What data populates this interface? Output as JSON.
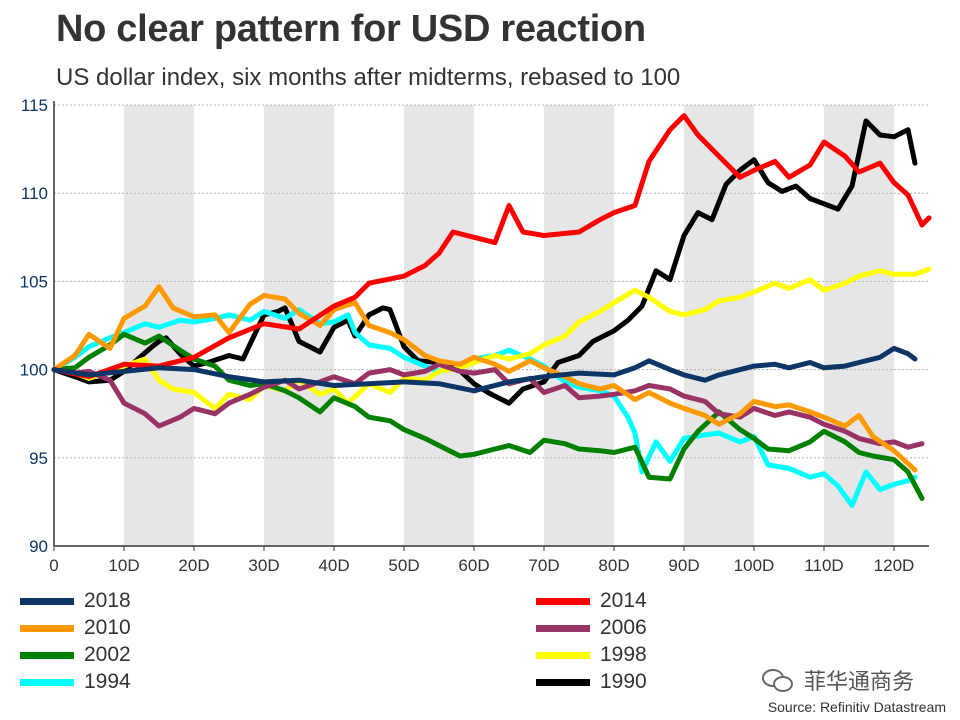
{
  "title": "No clear pattern for USD reaction",
  "subtitle": "US dollar index, six months after midterms, rebased to 100",
  "source": "Source: Refinitiv Datastream",
  "watermark": "菲华通商务",
  "watermark_icon": "wechat-icon",
  "chart_data": {
    "type": "line",
    "title": "No clear pattern for USD reaction",
    "subtitle": "US dollar index, six months after midterms, rebased to 100",
    "xlabel": "",
    "ylabel": "",
    "xlim": [
      0,
      125
    ],
    "ylim": [
      90,
      115
    ],
    "x_ticks": [
      0,
      10,
      20,
      30,
      40,
      50,
      60,
      70,
      80,
      90,
      100,
      110,
      120
    ],
    "x_tick_labels": [
      "0",
      "10D",
      "20D",
      "30D",
      "40D",
      "50D",
      "60D",
      "70D",
      "80D",
      "90D",
      "100D",
      "110D",
      "120D"
    ],
    "y_ticks": [
      90,
      95,
      100,
      105,
      110,
      115
    ],
    "y_tick_labels": [
      "90",
      "95",
      "100",
      "105",
      "110",
      "115"
    ],
    "grid": "horizontal dotted",
    "shaded_bands": [
      [
        10,
        20
      ],
      [
        30,
        40
      ],
      [
        50,
        60
      ],
      [
        70,
        80
      ],
      [
        90,
        100
      ],
      [
        110,
        120
      ]
    ],
    "legend_position": "bottom",
    "series": [
      {
        "name": "2018",
        "color": "#0d3566",
        "x": [
          0,
          5,
          10,
          15,
          20,
          25,
          30,
          35,
          40,
          45,
          50,
          55,
          60,
          65,
          70,
          75,
          80,
          83,
          85,
          88,
          90,
          93,
          95,
          100,
          103,
          105,
          108,
          110,
          113,
          115,
          118,
          120,
          122,
          123
        ],
        "y": [
          100,
          99.7,
          99.9,
          100.1,
          100,
          99.6,
          99.3,
          99.4,
          99.1,
          99.2,
          99.3,
          99.2,
          98.8,
          99.3,
          99.6,
          99.8,
          99.7,
          100.1,
          100.5,
          100,
          99.7,
          99.4,
          99.7,
          100.2,
          100.3,
          100.1,
          100.4,
          100.1,
          100.2,
          100.4,
          100.7,
          101.2,
          100.9,
          100.6
        ]
      },
      {
        "name": "2014",
        "color": "#ff0000",
        "x": [
          0,
          5,
          10,
          15,
          20,
          25,
          30,
          35,
          40,
          43,
          45,
          50,
          53,
          55,
          57,
          60,
          63,
          65,
          67,
          70,
          75,
          78,
          80,
          83,
          85,
          88,
          90,
          92,
          95,
          98,
          100,
          103,
          105,
          108,
          110,
          113,
          115,
          118,
          120,
          122,
          124,
          125
        ],
        "y": [
          100,
          99.6,
          100.3,
          100.2,
          100.7,
          101.8,
          102.6,
          102.3,
          103.6,
          104.1,
          104.9,
          105.3,
          105.9,
          106.6,
          107.8,
          107.5,
          107.2,
          109.3,
          107.8,
          107.6,
          107.8,
          108.5,
          108.9,
          109.3,
          111.8,
          113.6,
          114.4,
          113.3,
          112.1,
          110.9,
          111.3,
          111.8,
          110.9,
          111.6,
          112.9,
          112.1,
          111.2,
          111.7,
          110.6,
          109.9,
          108.2,
          108.6
        ]
      },
      {
        "name": "2010",
        "color": "#ff9900",
        "x": [
          0,
          3,
          5,
          8,
          10,
          13,
          15,
          17,
          20,
          23,
          25,
          28,
          30,
          33,
          35,
          38,
          40,
          43,
          45,
          48,
          50,
          53,
          55,
          58,
          60,
          63,
          65,
          68,
          70,
          73,
          75,
          78,
          80,
          83,
          85,
          88,
          90,
          93,
          95,
          98,
          100,
          103,
          105,
          108,
          110,
          113,
          115,
          117,
          120,
          123
        ],
        "y": [
          100,
          100.8,
          102,
          101.2,
          102.9,
          103.6,
          104.7,
          103.5,
          103,
          103.1,
          102.1,
          103.7,
          104.2,
          104,
          103.2,
          102.5,
          103.4,
          103.8,
          102.5,
          102.1,
          101.7,
          100.8,
          100.5,
          100.3,
          100.7,
          100.3,
          99.9,
          100.5,
          100.1,
          99.6,
          99.2,
          98.9,
          99.1,
          98.3,
          98.7,
          98.1,
          97.8,
          97.4,
          96.9,
          97.5,
          98.2,
          97.9,
          98,
          97.6,
          97.3,
          96.8,
          97.4,
          96.2,
          95.4,
          94.3
        ]
      },
      {
        "name": "2006",
        "color": "#993366",
        "x": [
          0,
          3,
          5,
          8,
          10,
          13,
          15,
          18,
          20,
          23,
          25,
          28,
          30,
          33,
          35,
          38,
          40,
          43,
          45,
          48,
          50,
          53,
          55,
          58,
          60,
          63,
          65,
          68,
          70,
          73,
          75,
          78,
          80,
          83,
          85,
          88,
          90,
          93,
          95,
          98,
          100,
          103,
          105,
          108,
          110,
          113,
          115,
          118,
          120,
          122,
          124
        ],
        "y": [
          100,
          99.8,
          99.9,
          99.4,
          98.1,
          97.5,
          96.8,
          97.3,
          97.8,
          97.5,
          98.1,
          98.6,
          99,
          99.4,
          98.9,
          99.3,
          99.6,
          99.2,
          99.8,
          100,
          99.7,
          99.9,
          100.3,
          99.9,
          99.8,
          100,
          99.2,
          99.5,
          98.7,
          99.1,
          98.4,
          98.5,
          98.6,
          98.8,
          99.1,
          98.9,
          98.5,
          98.2,
          97.5,
          97.3,
          97.8,
          97.4,
          97.6,
          97.3,
          96.9,
          96.5,
          96.1,
          95.8,
          95.9,
          95.6,
          95.8
        ]
      },
      {
        "name": "2002",
        "color": "#008000",
        "x": [
          0,
          3,
          5,
          8,
          10,
          13,
          15,
          18,
          20,
          23,
          25,
          28,
          30,
          33,
          35,
          38,
          40,
          43,
          45,
          48,
          50,
          53,
          55,
          58,
          60,
          63,
          65,
          68,
          70,
          73,
          75,
          78,
          80,
          83,
          85,
          88,
          90,
          92,
          95,
          98,
          100,
          102,
          105,
          108,
          110,
          113,
          115,
          117,
          120,
          122,
          124
        ],
        "y": [
          100,
          100.1,
          100.7,
          101.4,
          102,
          101.5,
          101.9,
          101.1,
          100.6,
          100.2,
          99.4,
          99.1,
          99.2,
          98.8,
          98.4,
          97.6,
          98.4,
          97.9,
          97.3,
          97.1,
          96.6,
          96.1,
          95.7,
          95.1,
          95.2,
          95.5,
          95.7,
          95.3,
          96,
          95.8,
          95.5,
          95.4,
          95.3,
          95.6,
          93.9,
          93.8,
          95.5,
          96.5,
          97.6,
          96.6,
          96.1,
          95.5,
          95.4,
          95.9,
          96.5,
          95.9,
          95.3,
          95.1,
          94.9,
          94.2,
          92.7
        ]
      },
      {
        "name": "1998",
        "color": "#ffff00",
        "x": [
          0,
          3,
          5,
          8,
          10,
          13,
          15,
          17,
          20,
          23,
          25,
          28,
          30,
          33,
          35,
          38,
          40,
          42,
          45,
          48,
          50,
          53,
          55,
          58,
          60,
          63,
          65,
          68,
          70,
          73,
          75,
          78,
          80,
          83,
          85,
          88,
          90,
          93,
          95,
          98,
          100,
          103,
          105,
          108,
          110,
          113,
          115,
          118,
          120,
          123,
          125
        ],
        "y": [
          100,
          99.8,
          99.5,
          99.9,
          100.2,
          100.6,
          99.4,
          98.9,
          98.7,
          97.8,
          98.6,
          98.3,
          99.1,
          98.8,
          99.4,
          98.6,
          98.9,
          98.1,
          99.2,
          98.7,
          99.5,
          99.4,
          99.9,
          100.1,
          100.4,
          100.8,
          100.6,
          100.9,
          101.4,
          101.9,
          102.7,
          103.3,
          103.8,
          104.5,
          104.1,
          103.3,
          103.1,
          103.4,
          103.9,
          104.1,
          104.4,
          104.9,
          104.6,
          105.1,
          104.5,
          104.9,
          105.3,
          105.6,
          105.4,
          105.4,
          105.7
        ]
      },
      {
        "name": "1994",
        "color": "#00ffff",
        "x": [
          0,
          3,
          5,
          8,
          10,
          13,
          15,
          18,
          20,
          23,
          25,
          28,
          30,
          33,
          35,
          38,
          40,
          42,
          43,
          45,
          48,
          50,
          53,
          55,
          58,
          60,
          63,
          65,
          68,
          70,
          73,
          75,
          78,
          80,
          82,
          83,
          84,
          86,
          88,
          90,
          93,
          95,
          98,
          100,
          102,
          105,
          108,
          110,
          112,
          114,
          116,
          118,
          120,
          122,
          123
        ],
        "y": [
          100,
          100.7,
          101.3,
          101.8,
          102.1,
          102.6,
          102.4,
          102.8,
          102.7,
          102.9,
          103.1,
          102.8,
          103.3,
          102.9,
          103.4,
          102.6,
          102.7,
          103.1,
          102.1,
          101.4,
          101.2,
          100.7,
          100.2,
          99.9,
          100.1,
          100.6,
          100.8,
          101.1,
          100.6,
          100.2,
          99.3,
          99,
          98.8,
          98.5,
          97.3,
          96.4,
          94.2,
          95.9,
          94.8,
          96.1,
          96.3,
          96.4,
          95.9,
          96.2,
          94.6,
          94.4,
          93.9,
          94.1,
          93.4,
          92.3,
          94.2,
          93.2,
          93.5,
          93.7,
          93.9
        ]
      },
      {
        "name": "1990",
        "color": "#000000",
        "x": [
          0,
          3,
          5,
          8,
          10,
          12,
          14,
          15,
          16,
          18,
          20,
          22,
          25,
          27,
          30,
          32,
          33,
          35,
          38,
          40,
          42,
          43,
          45,
          47,
          48,
          50,
          52,
          55,
          57,
          60,
          62,
          63,
          65,
          67,
          70,
          72,
          75,
          77,
          80,
          82,
          84,
          86,
          88,
          90,
          92,
          94,
          96,
          98,
          100,
          102,
          104,
          106,
          108,
          110,
          112,
          114,
          116,
          118,
          120,
          122,
          123
        ],
        "y": [
          100,
          99.6,
          99.3,
          99.4,
          99.9,
          100.6,
          101.3,
          101.6,
          101.8,
          100.9,
          100.2,
          100.4,
          100.8,
          100.6,
          103.1,
          103.3,
          103.5,
          101.6,
          101,
          102.4,
          102.8,
          101.9,
          103.1,
          103.5,
          103.4,
          101.3,
          100.5,
          100.4,
          100.3,
          99.2,
          98.7,
          98.5,
          98.1,
          98.9,
          99.3,
          100.4,
          100.8,
          101.6,
          102.2,
          102.8,
          103.6,
          105.6,
          105.1,
          107.6,
          108.9,
          108.5,
          110.5,
          111.3,
          111.9,
          110.6,
          110.1,
          110.4,
          109.7,
          109.4,
          109.1,
          110.4,
          114.1,
          113.3,
          113.2,
          113.6,
          111.7
        ]
      }
    ]
  }
}
